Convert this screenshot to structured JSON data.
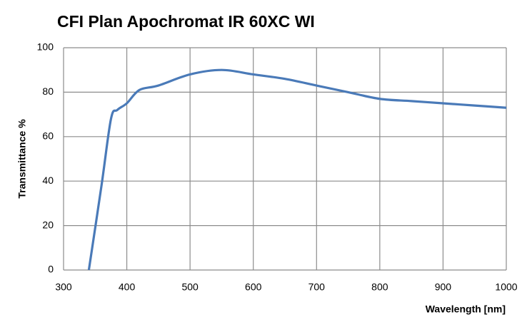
{
  "chart_data": {
    "type": "line",
    "title": "CFI Plan Apochromat IR 60XC WI",
    "x_label": "Wavelength [nm]",
    "y_label": "Transmittance %",
    "x": [
      340,
      360,
      375,
      385,
      400,
      420,
      450,
      500,
      550,
      600,
      650,
      700,
      750,
      800,
      850,
      900,
      950,
      1000
    ],
    "series": [
      {
        "name": "Transmittance",
        "color": "#4a7ab8",
        "values": [
          0,
          38,
          68,
          72,
          75,
          81,
          83,
          88,
          90,
          88,
          86,
          83,
          80,
          77,
          76,
          75,
          74,
          73
        ]
      }
    ],
    "xlim": [
      300,
      1000
    ],
    "xticks": [
      300,
      400,
      500,
      600,
      700,
      800,
      900,
      1000
    ],
    "ylim": [
      0,
      100
    ],
    "yticks": [
      0,
      20,
      40,
      60,
      80,
      100
    ],
    "grid": true
  }
}
